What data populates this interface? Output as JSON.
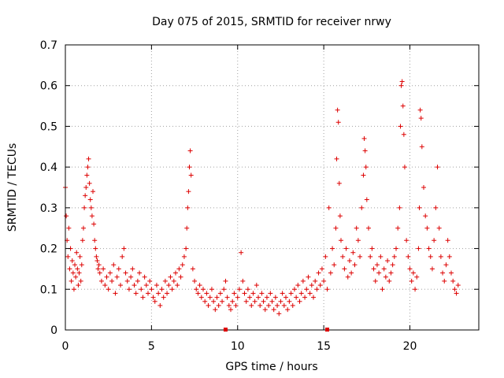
{
  "chart_data": {
    "type": "scatter",
    "title": "Day 075 of 2015, SRMTID for receiver nrwy",
    "xlabel": "GPS time / hours",
    "ylabel": "SRMTID / TECUs",
    "xlim": [
      0,
      24
    ],
    "ylim": [
      0,
      0.7
    ],
    "xticks": [
      0,
      5,
      10,
      15,
      20
    ],
    "yticks": [
      0,
      0.1,
      0.2,
      0.3,
      0.4,
      0.5,
      0.6,
      0.7
    ],
    "xtick_labels": [
      "0",
      "5",
      "10",
      "15",
      "20"
    ],
    "ytick_labels": [
      "0",
      "0.1",
      "0.2",
      "0.3",
      "0.4",
      "0.5",
      "0.6",
      "0.7"
    ],
    "grid": true,
    "marker": "+",
    "color": "#dd0000",
    "series": [
      {
        "name": "SRMTID",
        "x": [
          0.0,
          0.05,
          0.1,
          0.15,
          0.2,
          0.25,
          0.3,
          0.35,
          0.4,
          0.45,
          0.5,
          0.55,
          0.6,
          0.65,
          0.7,
          0.75,
          0.8,
          0.85,
          0.9,
          0.95,
          1.0,
          1.05,
          1.1,
          1.15,
          1.2,
          1.25,
          1.3,
          1.35,
          1.4,
          1.45,
          1.5,
          1.55,
          1.6,
          1.65,
          1.7,
          1.75,
          1.8,
          1.85,
          1.9,
          1.95,
          2.0,
          2.1,
          2.2,
          2.3,
          2.4,
          2.5,
          2.6,
          2.7,
          2.8,
          2.9,
          3.0,
          3.1,
          3.2,
          3.3,
          3.4,
          3.5,
          3.6,
          3.7,
          3.8,
          3.9,
          4.0,
          4.1,
          4.2,
          4.3,
          4.4,
          4.5,
          4.6,
          4.7,
          4.8,
          4.9,
          5.0,
          5.1,
          5.2,
          5.3,
          5.4,
          5.5,
          5.6,
          5.7,
          5.8,
          5.9,
          6.0,
          6.1,
          6.2,
          6.3,
          6.4,
          6.5,
          6.6,
          6.7,
          6.8,
          6.9,
          7.0,
          7.05,
          7.1,
          7.15,
          7.2,
          7.25,
          7.3,
          7.4,
          7.5,
          7.6,
          7.7,
          7.8,
          7.9,
          8.0,
          8.1,
          8.2,
          8.3,
          8.4,
          8.5,
          8.6,
          8.7,
          8.8,
          8.9,
          9.0,
          9.1,
          9.2,
          9.3,
          9.4,
          9.5,
          9.6,
          9.7,
          9.8,
          9.9,
          10.0,
          10.1,
          10.2,
          10.3,
          10.4,
          10.5,
          10.6,
          10.7,
          10.8,
          10.9,
          11.0,
          11.1,
          11.2,
          11.3,
          11.4,
          11.5,
          11.6,
          11.7,
          11.8,
          11.9,
          12.0,
          12.1,
          12.2,
          12.3,
          12.4,
          12.5,
          12.6,
          12.7,
          12.8,
          12.9,
          13.0,
          13.1,
          13.2,
          13.3,
          13.4,
          13.5,
          13.6,
          13.7,
          13.8,
          13.9,
          14.0,
          14.1,
          14.2,
          14.3,
          14.4,
          14.5,
          14.6,
          14.7,
          14.8,
          14.9,
          15.0,
          15.1,
          15.2,
          15.3,
          15.4,
          15.5,
          15.6,
          15.7,
          15.75,
          15.8,
          15.85,
          15.9,
          15.95,
          16.0,
          16.1,
          16.2,
          16.3,
          16.4,
          16.5,
          16.6,
          16.7,
          16.8,
          16.9,
          17.0,
          17.1,
          17.2,
          17.3,
          17.35,
          17.4,
          17.45,
          17.5,
          17.6,
          17.7,
          17.8,
          17.9,
          18.0,
          18.1,
          18.2,
          18.3,
          18.4,
          18.5,
          18.6,
          18.7,
          18.8,
          18.9,
          19.0,
          19.1,
          19.2,
          19.3,
          19.4,
          19.45,
          19.5,
          19.55,
          19.6,
          19.65,
          19.7,
          19.8,
          19.9,
          20.0,
          20.1,
          20.2,
          20.3,
          20.4,
          20.5,
          20.55,
          20.6,
          20.65,
          20.7,
          20.8,
          20.9,
          21.0,
          21.1,
          21.2,
          21.3,
          21.4,
          21.5,
          21.6,
          21.7,
          21.8,
          21.9,
          22.0,
          22.1,
          22.2,
          22.3,
          22.4,
          22.5,
          22.6,
          22.7,
          22.8
        ],
        "y": [
          0.35,
          0.28,
          0.22,
          0.18,
          0.25,
          0.15,
          0.2,
          0.12,
          0.17,
          0.14,
          0.1,
          0.16,
          0.13,
          0.19,
          0.15,
          0.11,
          0.14,
          0.18,
          0.12,
          0.16,
          0.22,
          0.25,
          0.3,
          0.33,
          0.35,
          0.38,
          0.4,
          0.42,
          0.36,
          0.32,
          0.3,
          0.28,
          0.34,
          0.26,
          0.22,
          0.2,
          0.18,
          0.17,
          0.15,
          0.16,
          0.14,
          0.12,
          0.15,
          0.11,
          0.13,
          0.1,
          0.14,
          0.12,
          0.16,
          0.09,
          0.13,
          0.15,
          0.11,
          0.18,
          0.2,
          0.14,
          0.12,
          0.1,
          0.13,
          0.15,
          0.11,
          0.09,
          0.12,
          0.14,
          0.1,
          0.08,
          0.13,
          0.11,
          0.09,
          0.12,
          0.1,
          0.08,
          0.07,
          0.11,
          0.09,
          0.06,
          0.1,
          0.08,
          0.12,
          0.09,
          0.11,
          0.13,
          0.1,
          0.12,
          0.14,
          0.11,
          0.15,
          0.13,
          0.16,
          0.18,
          0.2,
          0.25,
          0.3,
          0.34,
          0.4,
          0.44,
          0.38,
          0.15,
          0.12,
          0.1,
          0.09,
          0.11,
          0.08,
          0.1,
          0.07,
          0.09,
          0.06,
          0.08,
          0.1,
          0.07,
          0.05,
          0.08,
          0.06,
          0.09,
          0.07,
          0.1,
          0.12,
          0.08,
          0.06,
          0.05,
          0.07,
          0.09,
          0.06,
          0.08,
          0.1,
          0.19,
          0.12,
          0.09,
          0.07,
          0.1,
          0.08,
          0.06,
          0.09,
          0.07,
          0.11,
          0.08,
          0.06,
          0.09,
          0.07,
          0.05,
          0.08,
          0.06,
          0.09,
          0.07,
          0.05,
          0.08,
          0.06,
          0.04,
          0.07,
          0.09,
          0.06,
          0.08,
          0.05,
          0.07,
          0.09,
          0.06,
          0.1,
          0.08,
          0.11,
          0.07,
          0.09,
          0.12,
          0.08,
          0.1,
          0.13,
          0.09,
          0.11,
          0.08,
          0.12,
          0.1,
          0.14,
          0.11,
          0.15,
          0.12,
          0.18,
          0.1,
          0.3,
          0.14,
          0.2,
          0.16,
          0.25,
          0.42,
          0.54,
          0.51,
          0.36,
          0.28,
          0.22,
          0.18,
          0.15,
          0.2,
          0.13,
          0.17,
          0.14,
          0.19,
          0.16,
          0.25,
          0.22,
          0.18,
          0.3,
          0.38,
          0.47,
          0.44,
          0.4,
          0.32,
          0.25,
          0.18,
          0.2,
          0.15,
          0.12,
          0.16,
          0.14,
          0.18,
          0.1,
          0.15,
          0.13,
          0.17,
          0.12,
          0.14,
          0.16,
          0.18,
          0.2,
          0.25,
          0.3,
          0.5,
          0.6,
          0.61,
          0.55,
          0.48,
          0.4,
          0.22,
          0.18,
          0.15,
          0.12,
          0.14,
          0.1,
          0.13,
          0.2,
          0.3,
          0.54,
          0.52,
          0.45,
          0.35,
          0.28,
          0.25,
          0.2,
          0.18,
          0.15,
          0.22,
          0.3,
          0.4,
          0.25,
          0.18,
          0.14,
          0.12,
          0.16,
          0.22,
          0.18,
          0.14,
          0.12,
          0.1,
          0.09,
          0.11
        ]
      }
    ],
    "axis_markers": [
      9.3,
      15.2
    ]
  }
}
